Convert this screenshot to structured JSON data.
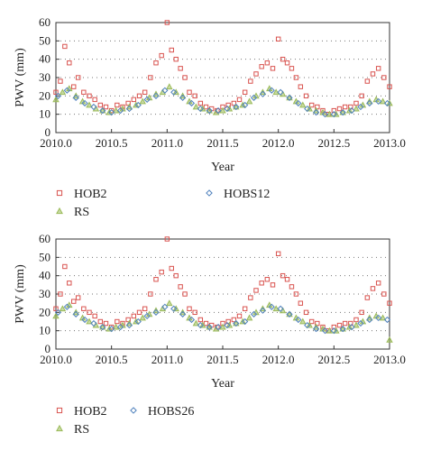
{
  "chart_data": [
    {
      "type": "scatter",
      "xlabel": "Year",
      "ylabel": "PWV (mm)",
      "xlim": [
        2010.0,
        2013.0
      ],
      "ylim": [
        0,
        60
      ],
      "xticks": [
        "2010.0",
        "2010.5",
        "2011.0",
        "2011.5",
        "2012.0",
        "2012.5",
        "2013.0"
      ],
      "yticks": [
        "0",
        "10",
        "20",
        "30",
        "40",
        "50",
        "60"
      ],
      "grid": "dotted horizontal",
      "legend_position": "below",
      "series": [
        {
          "name": "HOB2",
          "marker": "square",
          "color": "#d9534f",
          "x": [
            2010.0,
            2010.04,
            2010.08,
            2010.12,
            2010.16,
            2010.2,
            2010.25,
            2010.3,
            2010.35,
            2010.4,
            2010.45,
            2010.5,
            2010.55,
            2010.6,
            2010.65,
            2010.7,
            2010.75,
            2010.8,
            2010.85,
            2010.9,
            2010.95,
            2011.0,
            2011.04,
            2011.08,
            2011.12,
            2011.16,
            2011.2,
            2011.25,
            2011.3,
            2011.35,
            2011.4,
            2011.45,
            2011.5,
            2011.55,
            2011.6,
            2011.65,
            2011.7,
            2011.75,
            2011.8,
            2011.85,
            2011.9,
            2011.95,
            2012.0,
            2012.04,
            2012.08,
            2012.12,
            2012.16,
            2012.2,
            2012.25,
            2012.3,
            2012.35,
            2012.4,
            2012.45,
            2012.5,
            2012.55,
            2012.6,
            2012.65,
            2012.7,
            2012.75,
            2012.8,
            2012.85,
            2012.9,
            2012.95,
            2013.0
          ],
          "y": [
            22,
            28,
            47,
            38,
            25,
            30,
            22,
            20,
            18,
            15,
            14,
            12,
            15,
            14,
            16,
            18,
            20,
            22,
            30,
            38,
            42,
            60,
            45,
            40,
            35,
            30,
            22,
            20,
            16,
            14,
            13,
            12,
            14,
            15,
            16,
            18,
            22,
            28,
            32,
            36,
            38,
            35,
            51,
            40,
            38,
            35,
            30,
            25,
            20,
            15,
            14,
            12,
            10,
            12,
            13,
            14,
            14,
            16,
            20,
            28,
            32,
            35,
            30,
            25
          ]
        },
        {
          "name": "RS",
          "marker": "triangle",
          "color": "#9bbb59",
          "x": [
            2010.0,
            2010.06,
            2010.12,
            2010.18,
            2010.24,
            2010.3,
            2010.36,
            2010.42,
            2010.48,
            2010.54,
            2010.6,
            2010.66,
            2010.72,
            2010.78,
            2010.84,
            2010.9,
            2010.96,
            2011.02,
            2011.08,
            2011.14,
            2011.2,
            2011.26,
            2011.32,
            2011.38,
            2011.44,
            2011.5,
            2011.56,
            2011.62,
            2011.68,
            2011.74,
            2011.8,
            2011.86,
            2011.92,
            2011.98,
            2012.04,
            2012.1,
            2012.16,
            2012.22,
            2012.28,
            2012.34,
            2012.4,
            2012.46,
            2012.52,
            2012.58,
            2012.64,
            2012.7,
            2012.76,
            2012.82,
            2012.88,
            2012.94,
            2013.0
          ],
          "y": [
            18,
            22,
            24,
            20,
            17,
            15,
            13,
            12,
            11,
            12,
            13,
            14,
            15,
            17,
            19,
            21,
            22,
            25,
            22,
            20,
            17,
            14,
            13,
            12,
            11,
            12,
            13,
            14,
            15,
            17,
            20,
            22,
            24,
            22,
            21,
            19,
            17,
            15,
            13,
            12,
            11,
            10,
            10,
            11,
            12,
            13,
            15,
            17,
            18,
            17,
            16
          ]
        },
        {
          "name": "HOBS12",
          "marker": "diamond",
          "color": "#4f81bd",
          "x": [
            2010.02,
            2010.1,
            2010.18,
            2010.26,
            2010.34,
            2010.42,
            2010.5,
            2010.58,
            2010.66,
            2010.74,
            2010.82,
            2010.9,
            2010.98,
            2011.06,
            2011.14,
            2011.22,
            2011.3,
            2011.38,
            2011.46,
            2011.54,
            2011.62,
            2011.7,
            2011.78,
            2011.86,
            2011.94,
            2012.02,
            2012.1,
            2012.18,
            2012.26,
            2012.34,
            2012.42,
            2012.5,
            2012.58,
            2012.66,
            2012.74,
            2012.82,
            2012.9,
            2012.98
          ],
          "y": [
            20,
            23,
            19,
            16,
            14,
            12,
            11,
            12,
            13,
            15,
            18,
            20,
            23,
            22,
            19,
            16,
            13,
            12,
            12,
            13,
            14,
            15,
            19,
            21,
            23,
            22,
            19,
            16,
            13,
            11,
            10,
            10,
            11,
            12,
            14,
            16,
            17,
            16
          ]
        }
      ]
    },
    {
      "type": "scatter",
      "xlabel": "Year",
      "ylabel": "PWV (mm)",
      "xlim": [
        2010.0,
        2013.0
      ],
      "ylim": [
        0,
        60
      ],
      "xticks": [
        "2010.0",
        "2010.5",
        "2011.0",
        "2011.5",
        "2012.0",
        "2012.5",
        "2013.0"
      ],
      "yticks": [
        "0",
        "10",
        "20",
        "30",
        "40",
        "50",
        "60"
      ],
      "grid": "dotted horizontal",
      "legend_position": "below",
      "series": [
        {
          "name": "HOB2",
          "marker": "square",
          "color": "#d9534f",
          "x": [
            2010.0,
            2010.04,
            2010.08,
            2010.12,
            2010.16,
            2010.2,
            2010.25,
            2010.3,
            2010.35,
            2010.4,
            2010.45,
            2010.5,
            2010.55,
            2010.6,
            2010.65,
            2010.7,
            2010.75,
            2010.8,
            2010.85,
            2010.9,
            2010.95,
            2011.0,
            2011.04,
            2011.08,
            2011.12,
            2011.16,
            2011.2,
            2011.25,
            2011.3,
            2011.35,
            2011.4,
            2011.45,
            2011.5,
            2011.55,
            2011.6,
            2011.65,
            2011.7,
            2011.75,
            2011.8,
            2011.85,
            2011.9,
            2011.95,
            2012.0,
            2012.04,
            2012.08,
            2012.12,
            2012.16,
            2012.2,
            2012.25,
            2012.3,
            2012.35,
            2012.4,
            2012.45,
            2012.5,
            2012.55,
            2012.6,
            2012.65,
            2012.7,
            2012.75,
            2012.8,
            2012.85,
            2012.9,
            2012.95,
            2013.0
          ],
          "y": [
            22,
            30,
            45,
            36,
            26,
            28,
            22,
            20,
            18,
            15,
            14,
            12,
            15,
            14,
            16,
            18,
            20,
            22,
            30,
            38,
            42,
            60,
            44,
            40,
            34,
            30,
            22,
            20,
            16,
            14,
            13,
            12,
            14,
            15,
            16,
            18,
            22,
            28,
            32,
            36,
            38,
            35,
            52,
            40,
            38,
            34,
            30,
            25,
            20,
            15,
            14,
            12,
            10,
            12,
            13,
            14,
            14,
            16,
            20,
            28,
            33,
            36,
            30,
            25
          ]
        },
        {
          "name": "RS",
          "marker": "triangle",
          "color": "#9bbb59",
          "x": [
            2010.0,
            2010.06,
            2010.12,
            2010.18,
            2010.24,
            2010.3,
            2010.36,
            2010.42,
            2010.48,
            2010.54,
            2010.6,
            2010.66,
            2010.72,
            2010.78,
            2010.84,
            2010.9,
            2010.96,
            2011.02,
            2011.08,
            2011.14,
            2011.2,
            2011.26,
            2011.32,
            2011.38,
            2011.44,
            2011.5,
            2011.56,
            2011.62,
            2011.68,
            2011.74,
            2011.8,
            2011.86,
            2011.92,
            2011.98,
            2012.04,
            2012.1,
            2012.16,
            2012.22,
            2012.28,
            2012.34,
            2012.4,
            2012.46,
            2012.52,
            2012.58,
            2012.64,
            2012.7,
            2012.76,
            2012.82,
            2012.88,
            2012.94,
            2013.0
          ],
          "y": [
            18,
            22,
            24,
            20,
            17,
            15,
            13,
            12,
            11,
            12,
            13,
            14,
            15,
            17,
            19,
            21,
            22,
            25,
            22,
            20,
            17,
            14,
            13,
            12,
            11,
            12,
            13,
            14,
            15,
            17,
            20,
            22,
            24,
            22,
            21,
            19,
            17,
            15,
            13,
            12,
            11,
            10,
            10,
            11,
            12,
            13,
            15,
            17,
            18,
            17,
            5
          ]
        },
        {
          "name": "HOBS26",
          "marker": "diamond",
          "color": "#4f81bd",
          "x": [
            2010.02,
            2010.1,
            2010.18,
            2010.26,
            2010.34,
            2010.42,
            2010.5,
            2010.58,
            2010.66,
            2010.74,
            2010.82,
            2010.9,
            2010.98,
            2011.06,
            2011.14,
            2011.22,
            2011.3,
            2011.38,
            2011.46,
            2011.54,
            2011.62,
            2011.7,
            2011.78,
            2011.86,
            2011.94,
            2012.02,
            2012.1,
            2012.18,
            2012.26,
            2012.34,
            2012.42,
            2012.5,
            2012.58,
            2012.66,
            2012.74,
            2012.82,
            2012.9,
            2012.98
          ],
          "y": [
            20,
            23,
            19,
            16,
            14,
            12,
            11,
            12,
            13,
            15,
            18,
            20,
            23,
            22,
            19,
            16,
            13,
            12,
            12,
            13,
            14,
            15,
            19,
            21,
            23,
            22,
            19,
            16,
            13,
            11,
            10,
            10,
            11,
            12,
            14,
            16,
            17,
            16
          ]
        }
      ]
    }
  ]
}
